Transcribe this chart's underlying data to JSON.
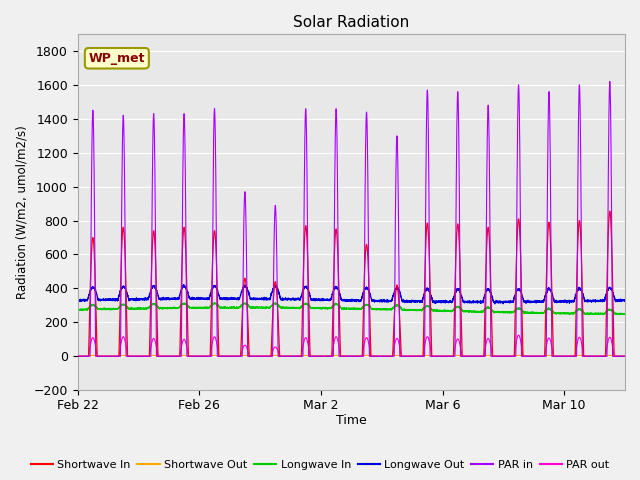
{
  "title": "Solar Radiation",
  "ylabel": "Radiation (W/m2, umol/m2/s)",
  "xlabel": "Time",
  "ylim": [
    -200,
    1900
  ],
  "yticks": [
    -200,
    0,
    200,
    400,
    600,
    800,
    1000,
    1200,
    1400,
    1600,
    1800
  ],
  "annotation": "WP_met",
  "bg_color": "#e8e8e8",
  "fig_color": "#f0f0f0",
  "grid_color": "#ffffff",
  "line_colors": {
    "sw_in": "#ff0000",
    "sw_out": "#ffaa00",
    "lw_in": "#00cc00",
    "lw_out": "#0000dd",
    "par_in": "#aa00ff",
    "par_out": "#ff00cc"
  },
  "legend_labels": [
    "Shortwave In",
    "Shortwave Out",
    "Longwave In",
    "Longwave Out",
    "PAR in",
    "PAR out"
  ],
  "x_tick_labels": [
    "Feb 22",
    "Feb 26",
    "Mar 2",
    "Mar 6",
    "Mar 10"
  ],
  "x_tick_positions": [
    0,
    4,
    8,
    12,
    16
  ],
  "par_in_peaks": [
    1450,
    1420,
    1430,
    1430,
    1460,
    970,
    890,
    1460,
    1460,
    1440,
    1300,
    1570,
    1560,
    1480,
    1600,
    1560,
    1600,
    1620
  ],
  "sw_in_peaks": [
    700,
    760,
    740,
    760,
    740,
    460,
    440,
    770,
    750,
    660,
    420,
    785,
    780,
    760,
    810,
    790,
    800,
    855
  ],
  "sw_out_peaks": [
    5,
    5,
    5,
    5,
    5,
    5,
    5,
    5,
    5,
    5,
    5,
    5,
    5,
    5,
    5,
    5,
    5,
    5
  ],
  "par_out_peaks": [
    110,
    115,
    105,
    100,
    115,
    65,
    55,
    110,
    115,
    110,
    105,
    115,
    102,
    105,
    125,
    108,
    112,
    112
  ],
  "n_days": 18,
  "pts_per_day": 240,
  "lw_in_base": 275,
  "lw_out_base": 330,
  "lw_out_day_amp": 75
}
